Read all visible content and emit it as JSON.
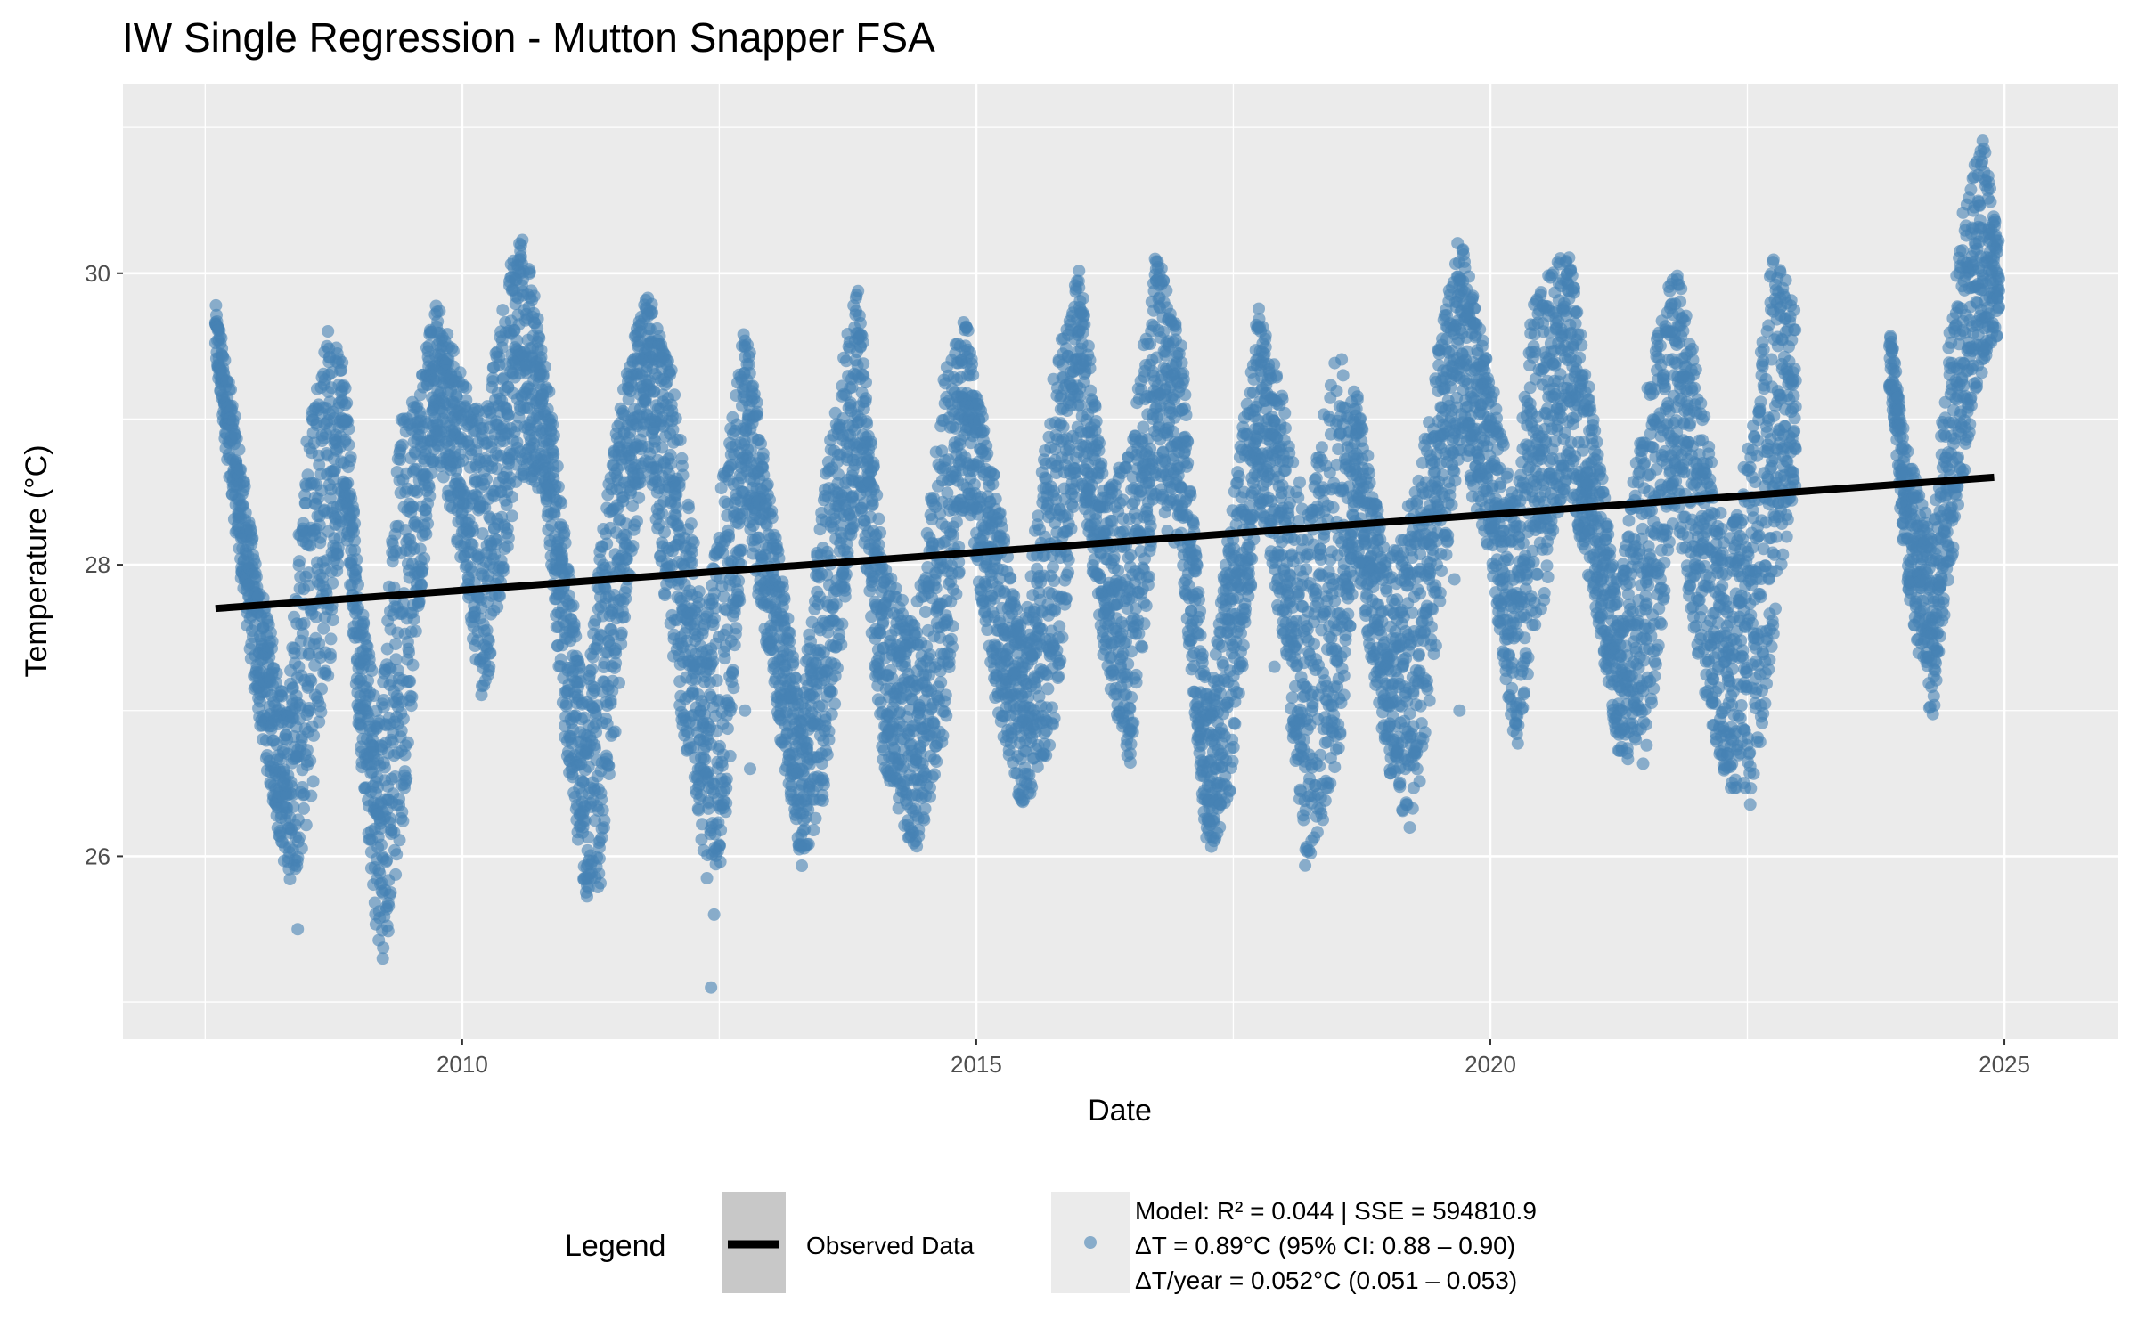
{
  "chart_data": {
    "type": "scatter",
    "title": "IW Single Regression - Mutton Snapper FSA",
    "xlabel": "Date",
    "ylabel": "Temperature (°C)",
    "xlim": [
      2006.7,
      2026.1
    ],
    "ylim": [
      24.75,
      31.3
    ],
    "x_ticks": [
      2010,
      2015,
      2020,
      2025
    ],
    "x_minor": [
      2007.5,
      2012.5,
      2017.5,
      2022.5
    ],
    "y_ticks": [
      26,
      28,
      30
    ],
    "y_minor": [
      25,
      27,
      29,
      31
    ],
    "grid": true,
    "series": [
      {
        "name": "Observed Data",
        "kind": "points",
        "color": "#4682B4",
        "envelope_x": [
          2007.6,
          2007.75,
          2008.0,
          2008.3,
          2008.45,
          2008.7,
          2008.85,
          2009.0,
          2009.2,
          2009.4,
          2009.55,
          2009.75,
          2010.0,
          2010.2,
          2010.55,
          2010.8,
          2011.0,
          2011.2,
          2011.35,
          2011.6,
          2011.8,
          2012.05,
          2012.35,
          2012.55,
          2012.75,
          2013.05,
          2013.3,
          2013.5,
          2013.7,
          2013.85,
          2014.1,
          2014.4,
          2014.7,
          2014.9,
          2015.2,
          2015.45,
          2015.75,
          2016.0,
          2016.25,
          2016.5,
          2016.75,
          2017.0,
          2017.25,
          2017.45,
          2017.75,
          2018.0,
          2018.2,
          2018.5,
          2018.7,
          2019.0,
          2019.25,
          2019.45,
          2019.7,
          2020.0,
          2020.25,
          2020.4,
          2020.75,
          2021.05,
          2021.25,
          2021.5,
          2021.8,
          2022.05,
          2022.3,
          2022.55,
          2022.75,
          2022.95,
          2023.9,
          2024.05,
          2024.3,
          2024.55,
          2024.8,
          2024.95
        ],
        "envelope_y_max": [
          29.8,
          29.2,
          28.0,
          27.0,
          28.7,
          29.7,
          29.5,
          27.8,
          27.0,
          29.1,
          29.2,
          29.8,
          29.3,
          29.0,
          30.4,
          29.5,
          28.2,
          27.0,
          28.2,
          29.4,
          29.9,
          29.3,
          27.6,
          28.7,
          29.7,
          28.2,
          27.0,
          28.5,
          29.5,
          29.9,
          28.0,
          27.6,
          29.4,
          29.7,
          28.5,
          27.5,
          29.3,
          30.1,
          28.5,
          28.8,
          30.2,
          29.5,
          27.0,
          28.2,
          29.8,
          29.1,
          28.4,
          29.5,
          29.2,
          28.0,
          28.5,
          29.3,
          30.3,
          29.3,
          28.4,
          29.8,
          30.2,
          28.8,
          27.8,
          29.2,
          30.1,
          29.2,
          28.1,
          29.0,
          30.2,
          29.8,
          29.6,
          28.8,
          28.2,
          30.3,
          31.0,
          30.2
        ],
        "envelope_y_min": [
          29.4,
          28.5,
          27.0,
          25.8,
          26.0,
          27.2,
          28.5,
          26.8,
          25.2,
          25.9,
          27.5,
          28.8,
          28.0,
          27.0,
          28.6,
          28.5,
          26.8,
          25.7,
          25.8,
          27.7,
          28.8,
          27.3,
          26.0,
          25.9,
          28.4,
          27.0,
          25.9,
          26.3,
          27.5,
          28.6,
          26.6,
          26.0,
          26.8,
          28.5,
          27.0,
          26.3,
          26.8,
          28.7,
          27.3,
          26.6,
          28.4,
          28.0,
          26.0,
          26.3,
          28.4,
          27.4,
          25.9,
          26.5,
          28.0,
          26.6,
          26.1,
          27.3,
          28.8,
          28.0,
          26.7,
          27.3,
          28.6,
          27.6,
          26.7,
          26.6,
          28.4,
          27.2,
          26.5,
          26.3,
          27.5,
          28.5,
          29.2,
          27.8,
          26.9,
          28.4,
          29.4,
          29.6
        ],
        "outliers": [
          [
            2012.42,
            25.1
          ],
          [
            2012.45,
            25.6
          ],
          [
            2012.38,
            25.85
          ],
          [
            2008.4,
            25.5
          ],
          [
            2017.3,
            26.6
          ],
          [
            2019.7,
            27.0
          ],
          [
            2019.65,
            27.9
          ],
          [
            2017.9,
            27.3
          ],
          [
            2012.75,
            27.0
          ],
          [
            2012.8,
            26.6
          ]
        ]
      },
      {
        "name": "Model: R² = 0.044 | SSE = 594810.9",
        "kind": "line",
        "color": "#000000",
        "x": [
          2007.6,
          2024.9
        ],
        "y": [
          27.7,
          28.6
        ]
      }
    ],
    "legend": {
      "position": "bottom",
      "title": "Legend",
      "entries": [
        "Observed Data",
        "Model: R² = 0.044 | SSE = 594810.9"
      ],
      "model_lines": [
        "Model: R² = 0.044 | SSE = 594810.9",
        "ΔT = 0.89°C (95% CI: 0.88 – 0.90)",
        "ΔT/year = 0.052°C (0.051 – 0.053)"
      ]
    }
  },
  "colors": {
    "panel": "#EBEBEB",
    "grid": "#FFFFFF",
    "points": "#4682B4",
    "line": "#000000"
  }
}
